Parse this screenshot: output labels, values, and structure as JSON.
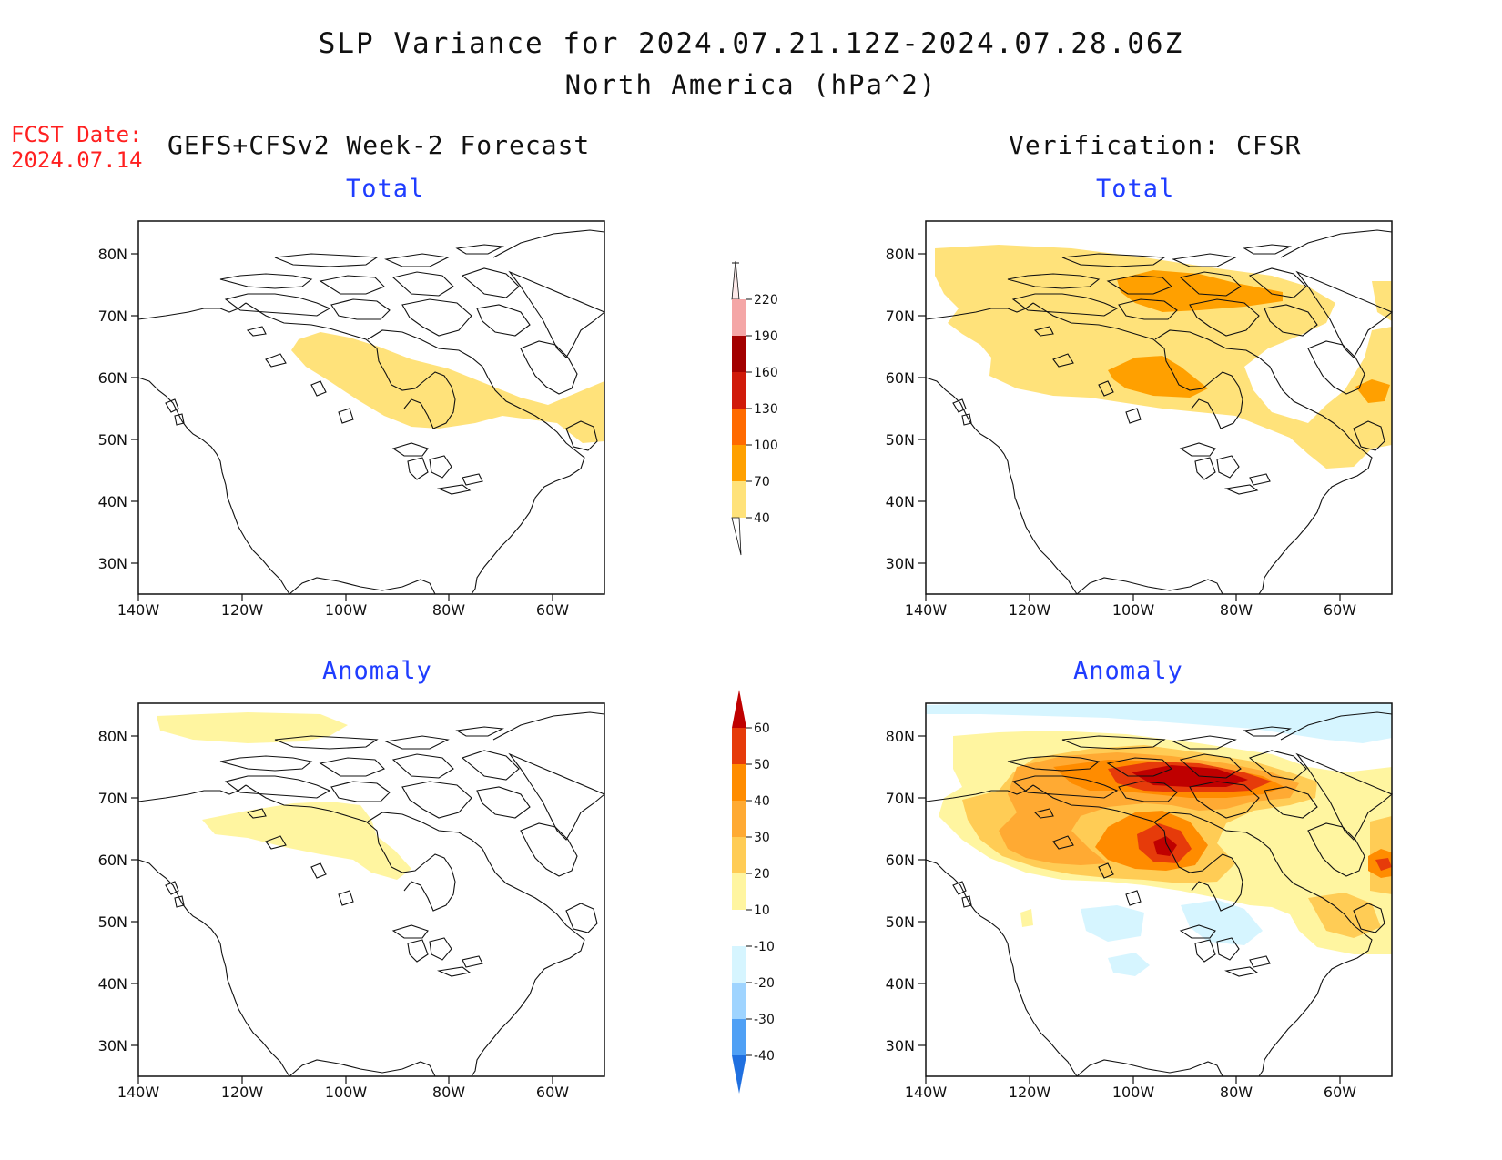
{
  "title": {
    "line1": "SLP Variance for 2024.07.21.12Z-2024.07.28.06Z",
    "line2": "North America (hPa^2)"
  },
  "fcst_date": {
    "label": "FCST Date:",
    "value": "2024.07.14"
  },
  "columns": {
    "left": "GEFS+CFSv2 Week-2 Forecast",
    "right": "Verification: CFSR"
  },
  "panels": {
    "forecast_total": "Total",
    "verification_total": "Total",
    "forecast_anomaly": "Anomaly",
    "verification_anomaly": "Anomaly"
  },
  "axes": {
    "lat_labels": [
      "80N",
      "70N",
      "60N",
      "50N",
      "40N",
      "30N"
    ],
    "lon_labels": [
      "140W",
      "120W",
      "100W",
      "80W",
      "60W"
    ]
  },
  "colorbars": {
    "total": {
      "labels": [
        "220",
        "190",
        "160",
        "130",
        "100",
        "70",
        "40"
      ],
      "colors": [
        "#f4a6a6",
        "#a30000",
        "#d01a0a",
        "#ff6a00",
        "#ffa000",
        "#ffe27a"
      ]
    },
    "anomaly": {
      "labels": [
        "60",
        "50",
        "40",
        "30",
        "20",
        "10",
        "-10",
        "-20",
        "-30",
        "-40"
      ],
      "colors": [
        "#bf0000",
        "#e63b0a",
        "#ff8c00",
        "#ffaa33",
        "#ffcc55",
        "#fff5a0",
        "#ffffff",
        "#d6f5ff",
        "#9fd4ff",
        "#4fa0f5",
        "#2070e0"
      ]
    }
  },
  "legend_colors": {
    "c40": "#ffe27a",
    "c70": "#ffa000",
    "c100": "#ff6a00",
    "a10": "#fff5a0",
    "a20": "#ffcc55",
    "a30": "#ffaa33",
    "a40": "#ff8c00",
    "a50": "#e63b0a",
    "a60": "#bf0000",
    "a_neg": "#d6f5ff"
  }
}
